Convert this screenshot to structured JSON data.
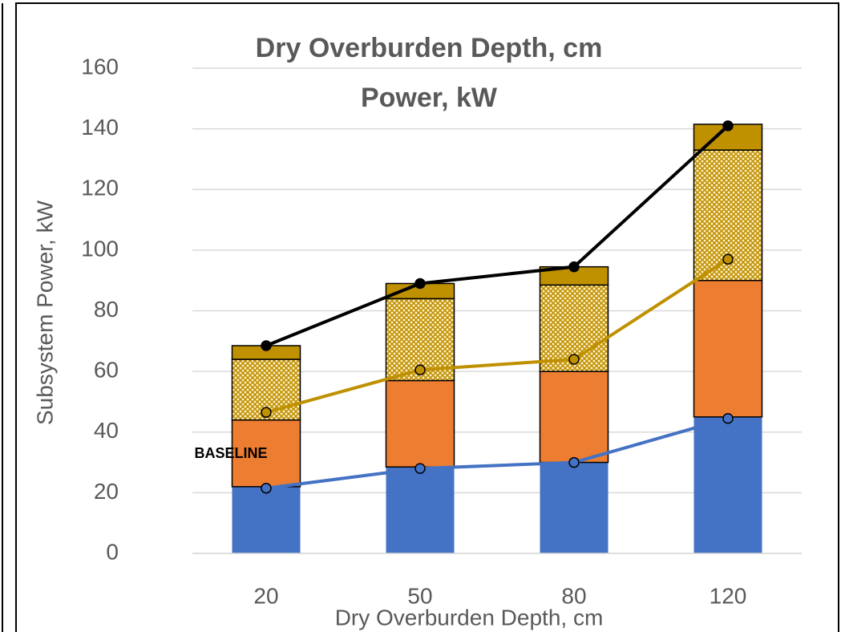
{
  "chart_data": {
    "type": "bar",
    "stacked": true,
    "title": [
      "Dry Overburden Depth, cm",
      "Power, kW"
    ],
    "x_label": "Dry Overburden Depth, cm",
    "y_label": "Subsystem Power, kW",
    "annotation": "BASELINE",
    "categories": [
      "20",
      "50",
      "80",
      "120"
    ],
    "ylim": [
      0,
      160
    ],
    "yticks": [
      0,
      20,
      40,
      60,
      80,
      100,
      120,
      140,
      160
    ],
    "grid": true,
    "series": [
      {
        "type": "bar",
        "color": "#4472c4",
        "values": [
          22,
          28.5,
          30,
          45
        ]
      },
      {
        "type": "bar",
        "color": "#ed7d31",
        "values": [
          22,
          28.5,
          30,
          45
        ]
      },
      {
        "type": "bar",
        "color": "#bf9000",
        "pattern": "crosshatch",
        "values": [
          20,
          27,
          28.5,
          43
        ]
      },
      {
        "type": "bar",
        "color": "#bf9000",
        "values": [
          4.5,
          5,
          6,
          8.5
        ]
      },
      {
        "type": "line",
        "color": "#000000",
        "values": [
          68.5,
          89,
          94.5,
          141
        ]
      },
      {
        "type": "line",
        "color": "#bf9000",
        "values": [
          46.5,
          60.5,
          64,
          97
        ]
      },
      {
        "type": "line",
        "color": "#4472c4",
        "values": [
          21.5,
          28,
          30,
          44.5
        ]
      }
    ]
  }
}
